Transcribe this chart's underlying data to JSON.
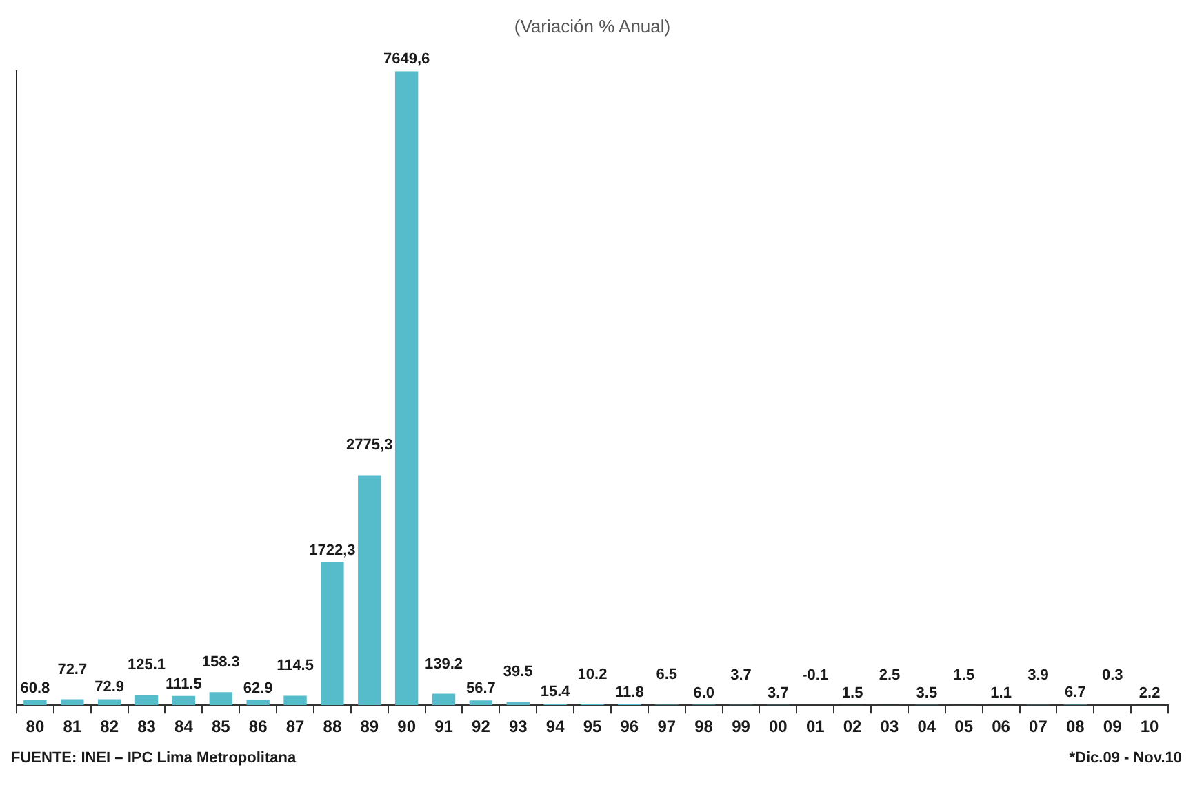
{
  "chart_data": {
    "type": "bar",
    "title": "(Variación % Anual)",
    "categories": [
      "80",
      "81",
      "82",
      "83",
      "84",
      "85",
      "86",
      "87",
      "88",
      "89",
      "90",
      "91",
      "92",
      "93",
      "94",
      "95",
      "96",
      "97",
      "98",
      "99",
      "00",
      "01",
      "02",
      "03",
      "04",
      "05",
      "06",
      "07",
      "08",
      "09",
      "10"
    ],
    "values": [
      60.8,
      72.7,
      72.9,
      125.1,
      111.5,
      158.3,
      62.9,
      114.5,
      1722.3,
      2775.3,
      7649.6,
      139.2,
      56.7,
      39.5,
      15.4,
      10.2,
      11.8,
      6.5,
      6.0,
      3.7,
      3.7,
      -0.1,
      1.5,
      2.5,
      3.5,
      1.5,
      1.1,
      3.9,
      6.7,
      0.3,
      2.2
    ],
    "value_labels": [
      "60.8",
      "72.7",
      "72.9",
      "125.1",
      "111.5",
      "158.3",
      "62.9",
      "114.5",
      "1722,3",
      "2775,3",
      "7649,6",
      "139.2",
      "56.7",
      "39.5",
      "15.4",
      "10.2",
      "11.8",
      "6.5",
      "6.0",
      "3.7",
      "3.7",
      "-0.1",
      "1.5",
      "2.5",
      "3.5",
      "1.5",
      "1.1",
      "3.9",
      "6.7",
      "0.3",
      "2.2"
    ],
    "color": "#56bccb",
    "annotations": [
      "FUENTE: INEI – IPC Lima Metropolitana",
      "*Dic.09 - Nov.10"
    ]
  }
}
